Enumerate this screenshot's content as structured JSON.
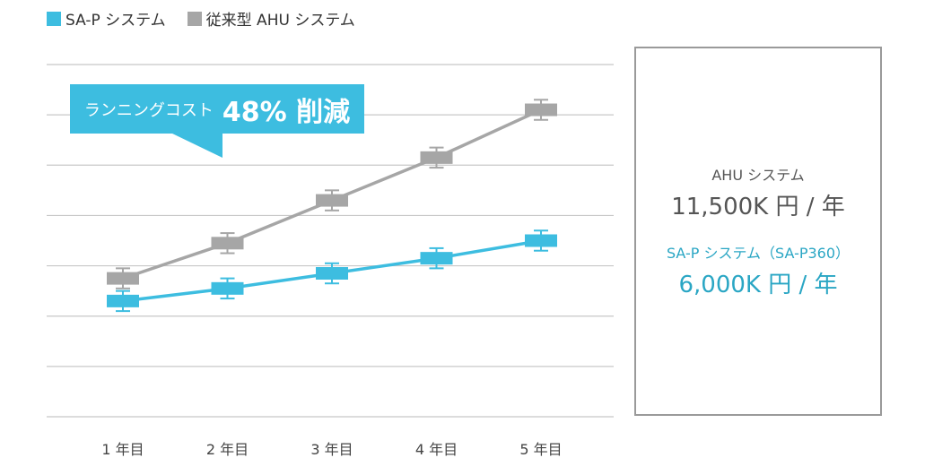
{
  "legend": [
    {
      "label": "SA-P システム",
      "color": "#3dbde0"
    },
    {
      "label": "従来型 AHU システム",
      "color": "#a6a6a6"
    }
  ],
  "callout": {
    "text": "ランニングコスト",
    "highlight": "48% 削減"
  },
  "info": {
    "ahu_label": "AHU システム",
    "ahu_value": "11,500K 円 / 年",
    "sap_label": "SA-P システム（SA-P360）",
    "sap_value": "6,000K 円 / 年"
  },
  "chart_data": {
    "type": "line",
    "categories": [
      "1 年目",
      "2 年目",
      "3 年目",
      "4 年目",
      "5 年目"
    ],
    "series": [
      {
        "name": "SA-P システム",
        "color": "#3dbde0",
        "values": [
          2.3,
          2.55,
          2.85,
          3.15,
          3.5
        ]
      },
      {
        "name": "従来型 AHU システム",
        "color": "#a6a6a6",
        "values": [
          2.75,
          3.45,
          4.3,
          5.15,
          6.1
        ]
      }
    ],
    "ylim": [
      0,
      7
    ],
    "grid": true,
    "error_bar": 0.2,
    "title": "",
    "xlabel": "",
    "ylabel": ""
  }
}
